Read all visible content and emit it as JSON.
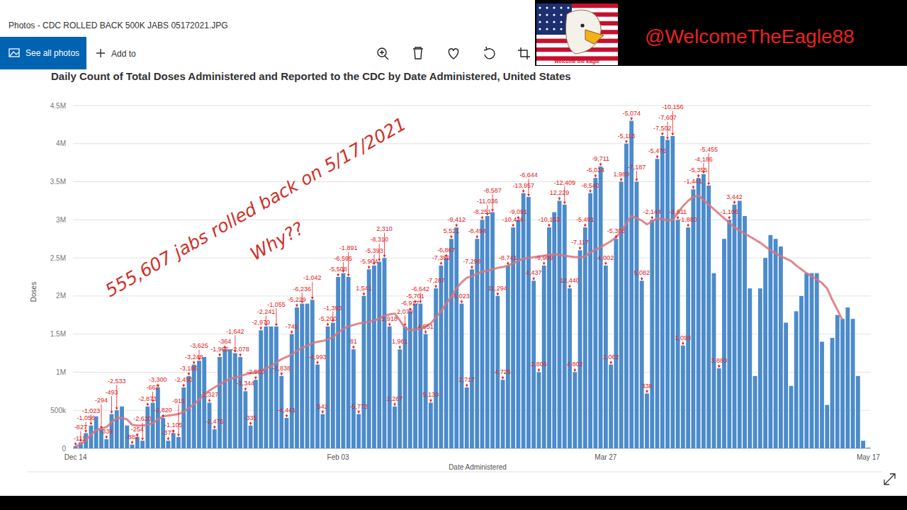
{
  "window": {
    "title": "Photos - CDC ROLLED BACK 500K JABS 05172021.JPG",
    "buttons": [
      "See all photos",
      "Add to"
    ],
    "icon_caption": "Welcome the Eagle",
    "watermark": "@WelcomeTheEagle88"
  },
  "overlay": {
    "headline": "555,607 jabs rolled back on 5/17/2021",
    "question": "Why??"
  },
  "chart_data": {
    "type": "bar",
    "title": "Daily Count of Total Doses Administered and Reported to the CDC by Date Administered, United States",
    "x_label": "Date Administered",
    "y_label": "Doses",
    "categories": [
      "Dec 14",
      null,
      null,
      null,
      null,
      null,
      null,
      null,
      null,
      null,
      null,
      null,
      null,
      null,
      null,
      null,
      null,
      null,
      null,
      null,
      null,
      null,
      null,
      null,
      null,
      null,
      null,
      null,
      null,
      null,
      null,
      null,
      null,
      null,
      null,
      null,
      null,
      null,
      null,
      null,
      null,
      null,
      null,
      null,
      null,
      null,
      null,
      null,
      null,
      null,
      null,
      "Feb 03",
      null,
      null,
      null,
      null,
      null,
      null,
      null,
      null,
      null,
      null,
      null,
      null,
      null,
      null,
      null,
      null,
      null,
      null,
      null,
      null,
      null,
      null,
      null,
      null,
      null,
      null,
      null,
      null,
      null,
      null,
      null,
      null,
      null,
      null,
      null,
      null,
      null,
      null,
      null,
      null,
      null,
      null,
      null,
      null,
      null,
      null,
      null,
      null,
      null,
      null,
      null,
      "Mar 27",
      null,
      null,
      null,
      null,
      null,
      null,
      null,
      null,
      null,
      null,
      null,
      null,
      null,
      null,
      null,
      null,
      null,
      null,
      null,
      null,
      null,
      null,
      null,
      null,
      null,
      null,
      null,
      null,
      null,
      null,
      null,
      null,
      null,
      null,
      null,
      null,
      null,
      null,
      null,
      null,
      null,
      null,
      null,
      null,
      null,
      null,
      null,
      null,
      null,
      null,
      "May 17"
    ],
    "series": [
      {
        "type": "bar",
        "color": "#4b8bcb",
        "values": [
          30000,
          80000,
          200000,
          300000,
          420000,
          250000,
          120000,
          450000,
          500000,
          550000,
          300000,
          50000,
          150000,
          100000,
          550000,
          600000,
          800000,
          400000,
          100000,
          200000,
          150000,
          800000,
          950000,
          1100000,
          1150000,
          1200000,
          600000,
          250000,
          1200000,
          1300000,
          1300000,
          1250000,
          1200000,
          750000,
          300000,
          900000,
          1550000,
          1600000,
          1600000,
          1600000,
          950000,
          400000,
          1500000,
          1850000,
          1900000,
          1900000,
          1950000,
          1100000,
          450000,
          1600000,
          1650000,
          2250000,
          2300000,
          2250000,
          1300000,
          450000,
          2000000,
          2350000,
          2400000,
          2450000,
          2500000,
          1600000,
          550000,
          1300000,
          1600000,
          1800000,
          1900000,
          1900000,
          1500000,
          600000,
          2100000,
          2400000,
          2500000,
          2750000,
          2900000,
          1900000,
          800000,
          2350000,
          2750000,
          3000000,
          3050000,
          3100000,
          2000000,
          900000,
          2400000,
          2900000,
          3000000,
          3350000,
          3300000,
          2200000,
          1000000,
          2400000,
          2900000,
          3100000,
          3250000,
          3200000,
          2100000,
          1000000,
          2600000,
          2900000,
          3350000,
          3550000,
          3700000,
          2400000,
          1100000,
          2750000,
          3500000,
          4000000,
          4300000,
          3500000,
          2200000,
          720000,
          3000000,
          3800000,
          4100000,
          4050000,
          4100000,
          3000000,
          1350000,
          2900000,
          3400000,
          3550000,
          3600000,
          3450000,
          2300000,
          1050000,
          2750000,
          3000000,
          3200000,
          3250000,
          3050000,
          2100000,
          950000,
          2100000,
          2500000,
          2800000,
          2750000,
          2650000,
          1650000,
          820000,
          1800000,
          2000000,
          2300000,
          2300000,
          2300000,
          1400000,
          570000,
          1450000,
          1750000,
          1700000,
          1850000,
          1700000,
          950000,
          100000,
          10000
        ]
      },
      {
        "type": "line",
        "color": "#d9747c",
        "values": [
          20000,
          60000,
          110000,
          180000,
          240000,
          260000,
          280000,
          340000,
          400000,
          400000,
          380000,
          310000,
          300000,
          300000,
          310000,
          330000,
          380000,
          420000,
          430000,
          440000,
          450000,
          480000,
          530000,
          580000,
          640000,
          700000,
          760000,
          800000,
          840000,
          880000,
          910000,
          930000,
          950000,
          970000,
          990000,
          1000000,
          1020000,
          1050000,
          1080000,
          1130000,
          1170000,
          1200000,
          1230000,
          1280000,
          1320000,
          1350000,
          1380000,
          1400000,
          1410000,
          1430000,
          1460000,
          1520000,
          1570000,
          1600000,
          1620000,
          1640000,
          1650000,
          1660000,
          1680000,
          1700000,
          1740000,
          1760000,
          1770000,
          1680000,
          1580000,
          1550000,
          1560000,
          1570000,
          1600000,
          1640000,
          1720000,
          1800000,
          1900000,
          1990000,
          2100000,
          2180000,
          2240000,
          2260000,
          2290000,
          2320000,
          2330000,
          2350000,
          2370000,
          2380000,
          2400000,
          2430000,
          2460000,
          2490000,
          2500000,
          2510000,
          2520000,
          2530000,
          2540000,
          2550000,
          2540000,
          2530000,
          2520000,
          2510000,
          2510000,
          2520000,
          2570000,
          2610000,
          2640000,
          2680000,
          2720000,
          2770000,
          2850000,
          2950000,
          3050000,
          3020000,
          2990000,
          2940000,
          2980000,
          3020000,
          3010000,
          2990000,
          3000000,
          3090000,
          3180000,
          3250000,
          3300000,
          3320000,
          3260000,
          3200000,
          3140000,
          3080000,
          3020000,
          2960000,
          2900000,
          2860000,
          2820000,
          2780000,
          2740000,
          2700000,
          2650000,
          2600000,
          2560000,
          2520000,
          2490000,
          2460000,
          2400000,
          2350000,
          2300000,
          2260000,
          2220000,
          2170000,
          2100000,
          1950000,
          1820000,
          1680000,
          null,
          null,
          null,
          null,
          null
        ]
      }
    ],
    "ylim": [
      0,
      4500000
    ],
    "yticks": [
      0,
      {
        "value": 500000,
        "label": "500k"
      },
      {
        "value": 1000000,
        "label": "1M"
      },
      {
        "value": 1500000,
        "label": "1.5M"
      },
      {
        "value": 2000000,
        "label": "2M"
      },
      {
        "value": 2500000,
        "label": "2.5M"
      },
      {
        "value": 3000000,
        "label": "3M"
      },
      {
        "value": 3500000,
        "label": "3.5M"
      },
      {
        "value": 4000000,
        "label": "4M"
      },
      {
        "value": 4500000,
        "label": "4.5M"
      }
    ],
    "grid": true,
    "annotations": [
      {
        "text": "-111",
        "index": 0
      },
      {
        "text": "-827",
        "index": 1
      },
      {
        "text": "-1,056",
        "index": 2
      },
      {
        "text": "-1,023",
        "index": 3
      },
      {
        "text": "-294",
        "index": 5
      },
      {
        "text": "-339",
        "index": 6
      },
      {
        "text": "-493",
        "index": 7
      },
      {
        "text": "-2,533",
        "index": 8
      },
      {
        "text": "-882",
        "index": 11
      },
      {
        "text": "-254",
        "index": 12
      },
      {
        "text": "-2,620",
        "index": 13
      },
      {
        "text": "-2,873",
        "index": 14
      },
      {
        "text": "-662",
        "index": 15
      },
      {
        "text": "-3,300",
        "index": 16
      },
      {
        "text": "-2,820",
        "index": 17
      },
      {
        "text": "-377",
        "index": 18
      },
      {
        "text": "-1,105",
        "index": 19
      },
      {
        "text": "-915",
        "index": 20
      },
      {
        "text": "-2,450",
        "index": 21
      },
      {
        "text": "-3,186",
        "index": 22
      },
      {
        "text": "-3,248",
        "index": 23
      },
      {
        "text": "-3,625",
        "index": 24
      },
      {
        "text": "-2,327",
        "index": 26
      },
      {
        "text": "-2,475",
        "index": 27
      },
      {
        "text": "-1,965",
        "index": 28
      },
      {
        "text": "-364",
        "index": 29
      },
      {
        "text": "-1,642",
        "index": 31
      },
      {
        "text": "-2,078",
        "index": 32
      },
      {
        "text": "-3,344",
        "index": 33
      },
      {
        "text": "-335",
        "index": 34
      },
      {
        "text": "-2,520",
        "index": 35
      },
      {
        "text": "-2,970",
        "index": 36
      },
      {
        "text": "-2,241",
        "index": 37
      },
      {
        "text": "-1,055",
        "index": 39
      },
      {
        "text": "-2,838",
        "index": 40
      },
      {
        "text": "-4,441",
        "index": 41
      },
      {
        "text": "-745",
        "index": 42
      },
      {
        "text": "-5,229",
        "index": 43
      },
      {
        "text": "-6,236",
        "index": 44
      },
      {
        "text": "-1,042",
        "index": 46
      },
      {
        "text": "-4,993",
        "index": 47
      },
      {
        "text": "542",
        "index": 48
      },
      {
        "text": "-5,200",
        "index": 49
      },
      {
        "text": "-1,393",
        "index": 50
      },
      {
        "text": "-5,508",
        "index": 51
      },
      {
        "text": "-6,595",
        "index": 52
      },
      {
        "text": "-1,891",
        "index": 53
      },
      {
        "text": "81",
        "index": 54
      },
      {
        "text": "-5,773",
        "index": 55
      },
      {
        "text": "1,541",
        "index": 56
      },
      {
        "text": "-5,904",
        "index": 57
      },
      {
        "text": "-5,393",
        "index": 58
      },
      {
        "text": "-8,310",
        "index": 59
      },
      {
        "text": "2,310",
        "index": 60
      },
      {
        "text": "2,918",
        "index": 61
      },
      {
        "text": "2,267",
        "index": 62
      },
      {
        "text": "1,961",
        "index": 63
      },
      {
        "text": "2,070",
        "index": 64
      },
      {
        "text": "-6,917",
        "index": 65
      },
      {
        "text": "-5,701",
        "index": 66
      },
      {
        "text": "-6,642",
        "index": 67
      },
      {
        "text": "4,551",
        "index": 68
      },
      {
        "text": "5,130",
        "index": 69
      },
      {
        "text": "-7,287",
        "index": 70
      },
      {
        "text": "-7,359",
        "index": 71
      },
      {
        "text": "-6,867",
        "index": 72
      },
      {
        "text": "5,521",
        "index": 73
      },
      {
        "text": "-9,412",
        "index": 74
      },
      {
        "text": "6,023",
        "index": 75
      },
      {
        "text": "2,717",
        "index": 76
      },
      {
        "text": "-7,298",
        "index": 77
      },
      {
        "text": "-8,494",
        "index": 78
      },
      {
        "text": "-8,251",
        "index": 79
      },
      {
        "text": "-11,036",
        "index": 80
      },
      {
        "text": "-8,587",
        "index": 81
      },
      {
        "text": "11,294",
        "index": 82
      },
      {
        "text": "4,725",
        "index": 83
      },
      {
        "text": "-8,741",
        "index": 84
      },
      {
        "text": "-10,426",
        "index": 85
      },
      {
        "text": "-9,091",
        "index": 86
      },
      {
        "text": "-13,957",
        "index": 87
      },
      {
        "text": "-6,644",
        "index": 88
      },
      {
        "text": "4,437",
        "index": 89
      },
      {
        "text": "2,806",
        "index": 90
      },
      {
        "text": "-9,909",
        "index": 91
      },
      {
        "text": "-10,153",
        "index": 92
      },
      {
        "text": "12,229",
        "index": 94
      },
      {
        "text": "-12,409",
        "index": 95
      },
      {
        "text": "12,440",
        "index": 96
      },
      {
        "text": "4,802",
        "index": 97
      },
      {
        "text": "-7,117",
        "index": 98
      },
      {
        "text": "-5,491",
        "index": 99
      },
      {
        "text": "-8,540",
        "index": 100
      },
      {
        "text": "-6,034",
        "index": 101
      },
      {
        "text": "-9,711",
        "index": 102
      },
      {
        "text": "4,002",
        "index": 103
      },
      {
        "text": "2,062",
        "index": 104
      },
      {
        "text": "-5,308",
        "index": 105
      },
      {
        "text": "1,980",
        "index": 106
      },
      {
        "text": "-5,113",
        "index": 107
      },
      {
        "text": "-5,074",
        "index": 108
      },
      {
        "text": "-7,187",
        "index": 109
      },
      {
        "text": "5,082",
        "index": 110
      },
      {
        "text": "338",
        "index": 111
      },
      {
        "text": "-2,144",
        "index": 112
      },
      {
        "text": "-5,476",
        "index": 113
      },
      {
        "text": "-7,502",
        "index": 114
      },
      {
        "text": "-7,607",
        "index": 115
      },
      {
        "text": "-10,156",
        "index": 116
      },
      {
        "text": "-3,611",
        "index": 117
      },
      {
        "text": "1,098",
        "index": 118
      },
      {
        "text": "-1,880",
        "index": 119
      },
      {
        "text": "-1,441",
        "index": 120
      },
      {
        "text": "-5,355",
        "index": 121
      },
      {
        "text": "-4,186",
        "index": 122
      },
      {
        "text": "-5,455",
        "index": 123
      },
      {
        "text": "3,880",
        "index": 125
      },
      {
        "text": "-1,106",
        "index": 127
      },
      {
        "text": "3,442",
        "index": 128
      }
    ]
  }
}
